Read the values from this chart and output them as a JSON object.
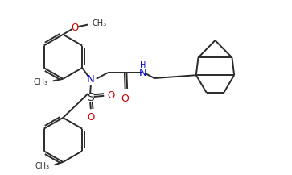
{
  "bg_color": "#ffffff",
  "line_color": "#2a2a2a",
  "color_N": "#0000cc",
  "color_O": "#cc0000",
  "color_S": "#2a2a2a",
  "lw": 1.4,
  "fig_width": 3.63,
  "fig_height": 2.17,
  "dpi": 100,
  "xlim": [
    0,
    9.5
  ],
  "ylim": [
    0,
    5.5
  ]
}
